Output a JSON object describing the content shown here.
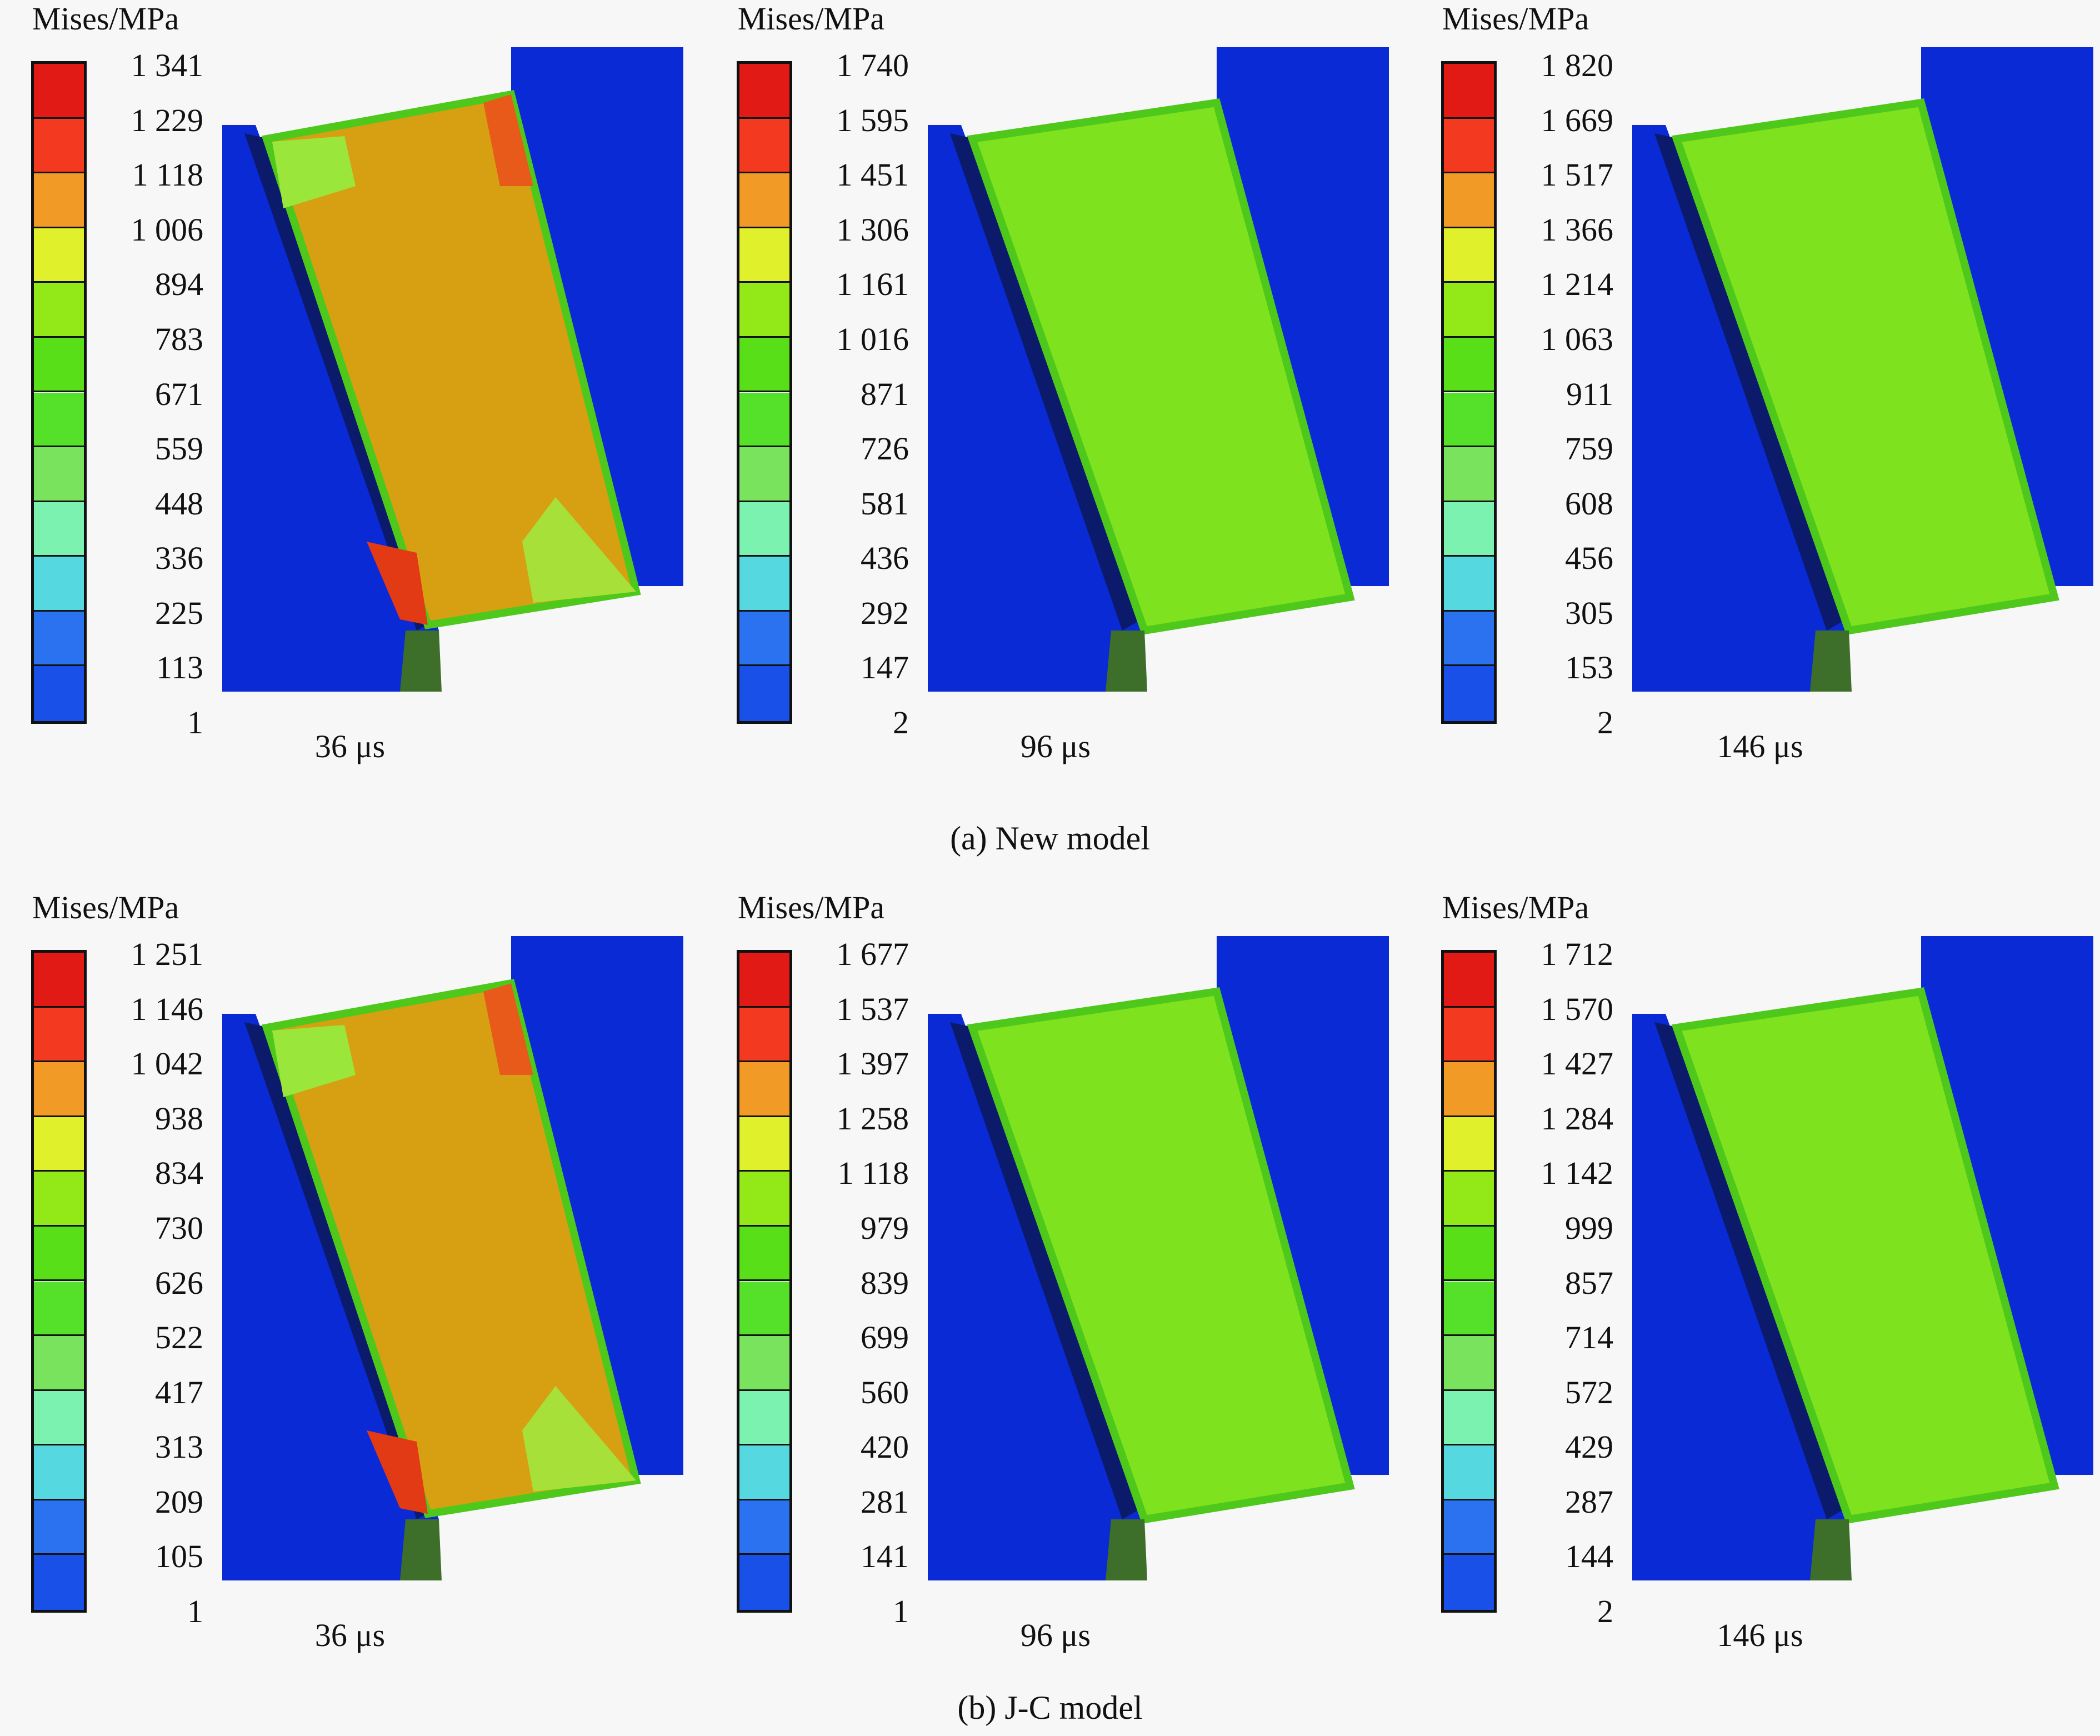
{
  "colors": {
    "scale": [
      "#0a2ad6",
      "#1850e8",
      "#2a72f0",
      "#55d8e0",
      "#7cf2b0",
      "#7ae35e",
      "#55e02a",
      "#58df18",
      "#93e818",
      "#e0f02a",
      "#f19a26",
      "#f33a20",
      "#e21a16"
    ],
    "background": "#0a2ad6",
    "warm_fill": "#d7a012",
    "green_fill": "#7ee21e"
  },
  "rows": [
    {
      "caption": "(a) New model",
      "panels": [
        {
          "legend_title": "Mises/MPa",
          "ticks": [
            "1 341",
            "1 229",
            "1 118",
            "1 006",
            "894",
            "783",
            "671",
            "559",
            "448",
            "336",
            "225",
            "113",
            "1"
          ],
          "time": "36 μs",
          "state": "warm"
        },
        {
          "legend_title": "Mises/MPa",
          "ticks": [
            "1 740",
            "1 595",
            "1 451",
            "1 306",
            "1 161",
            "1 016",
            "871",
            "726",
            "581",
            "436",
            "292",
            "147",
            "2"
          ],
          "time": "96 μs",
          "state": "green"
        },
        {
          "legend_title": "Mises/MPa",
          "ticks": [
            "1 820",
            "1 669",
            "1 517",
            "1 366",
            "1 214",
            "1 063",
            "911",
            "759",
            "608",
            "456",
            "305",
            "153",
            "2"
          ],
          "time": "146 μs",
          "state": "green"
        }
      ]
    },
    {
      "caption": "(b) J-C model",
      "panels": [
        {
          "legend_title": "Mises/MPa",
          "ticks": [
            "1 251",
            "1 146",
            "1 042",
            "938",
            "834",
            "730",
            "626",
            "522",
            "417",
            "313",
            "209",
            "105",
            "1"
          ],
          "time": "36 μs",
          "state": "warm"
        },
        {
          "legend_title": "Mises/MPa",
          "ticks": [
            "1 677",
            "1 537",
            "1 397",
            "1 258",
            "1 118",
            "979",
            "839",
            "699",
            "560",
            "420",
            "281",
            "141",
            "1"
          ],
          "time": "96 μs",
          "state": "green"
        },
        {
          "legend_title": "Mises/MPa",
          "ticks": [
            "1 712",
            "1 570",
            "1 427",
            "1 284",
            "1 142",
            "999",
            "857",
            "714",
            "572",
            "429",
            "287",
            "144",
            "2"
          ],
          "time": "146 μs",
          "state": "green"
        }
      ]
    }
  ]
}
